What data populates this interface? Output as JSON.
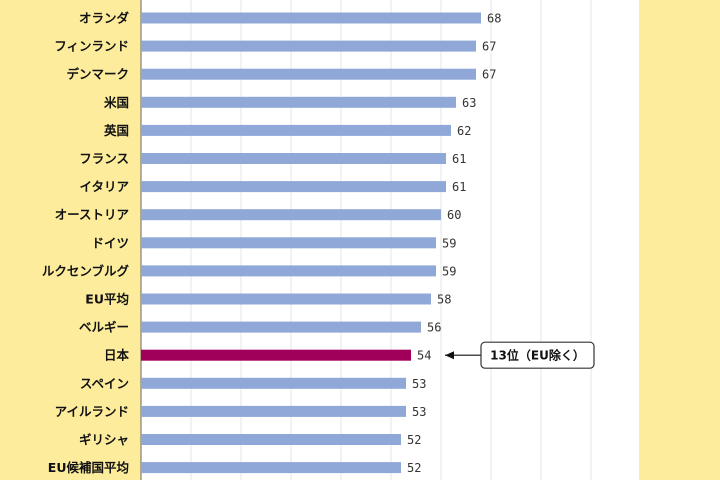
{
  "chart_data": {
    "type": "bar",
    "orientation": "horizontal",
    "categories": [
      "オランダ",
      "フィンランド",
      "デンマーク",
      "米国",
      "英国",
      "フランス",
      "イタリア",
      "オーストリア",
      "ドイツ",
      "ルクセンブルグ",
      "EU平均",
      "ベルギー",
      "日本",
      "スペイン",
      "アイルランド",
      "ギリシャ",
      "EU候補国平均"
    ],
    "values": [
      68,
      67,
      67,
      63,
      62,
      61,
      61,
      60,
      59,
      59,
      58,
      56,
      54,
      53,
      53,
      52,
      52
    ],
    "highlight_category": "日本",
    "bar_color": "#8fa8d8",
    "highlight_color": "#a0005a",
    "grid": true,
    "annotation": {
      "category": "日本",
      "text": "13位（EU除く）"
    }
  }
}
